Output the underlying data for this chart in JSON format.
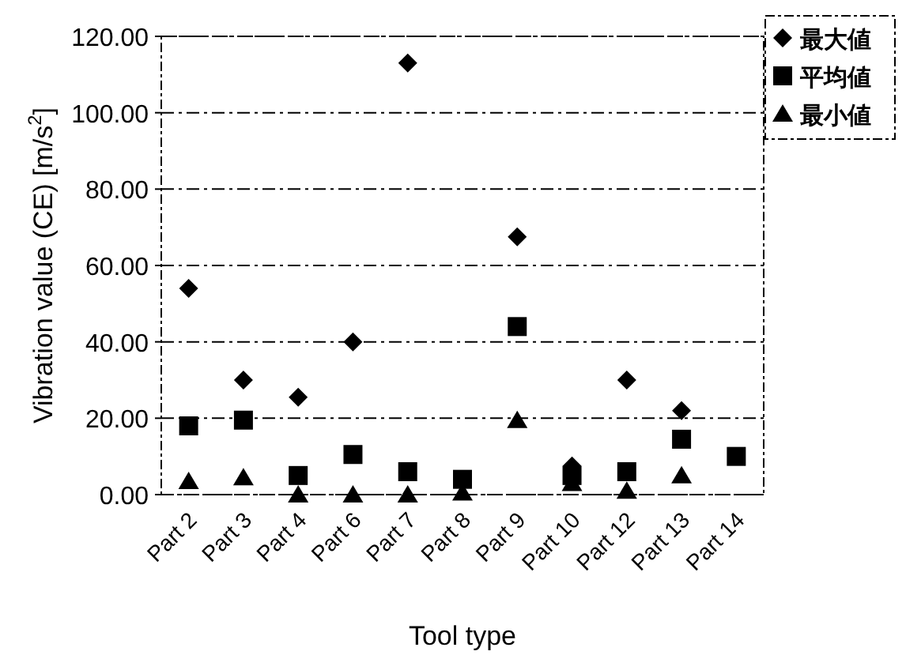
{
  "chart_data": {
    "type": "scatter",
    "xlabel": "Tool type",
    "ylabel": "Vibration value (CE) [m/s$^{2}$]",
    "categories": [
      "Part 2",
      "Part 3",
      "Part 4",
      "Part 6",
      "Part 7",
      "Part 8",
      "Part 9",
      "Part 10",
      "Part 12",
      "Part 13",
      "Part 14"
    ],
    "series": [
      {
        "name": "最大値",
        "color": "#000000",
        "marker": "diamond",
        "values": [
          54,
          30,
          25.5,
          40,
          113,
          null,
          67.5,
          7.5,
          30,
          22,
          null
        ]
      },
      {
        "name": "平均値",
        "color": "#000000",
        "marker": "square",
        "values": [
          18,
          19.5,
          5,
          10.5,
          6,
          4,
          44,
          5,
          6,
          14.5,
          10
        ]
      },
      {
        "name": "最小値",
        "color": "#000000",
        "marker": "triangle",
        "values": [
          3.5,
          4.5,
          0,
          0,
          0,
          0.5,
          19.5,
          3,
          1,
          5,
          null
        ]
      }
    ],
    "ylim": [
      0,
      120
    ],
    "yticks": [
      {
        "value": 0,
        "label": "0.00"
      },
      {
        "value": 20,
        "label": "20.00"
      },
      {
        "value": 40,
        "label": "40.00"
      },
      {
        "value": 60,
        "label": "60.00"
      },
      {
        "value": 80,
        "label": "80.00"
      },
      {
        "value": 100,
        "label": "100.00"
      },
      {
        "value": 120,
        "label": "120.00"
      }
    ],
    "grid": "y",
    "legend": "top right"
  }
}
